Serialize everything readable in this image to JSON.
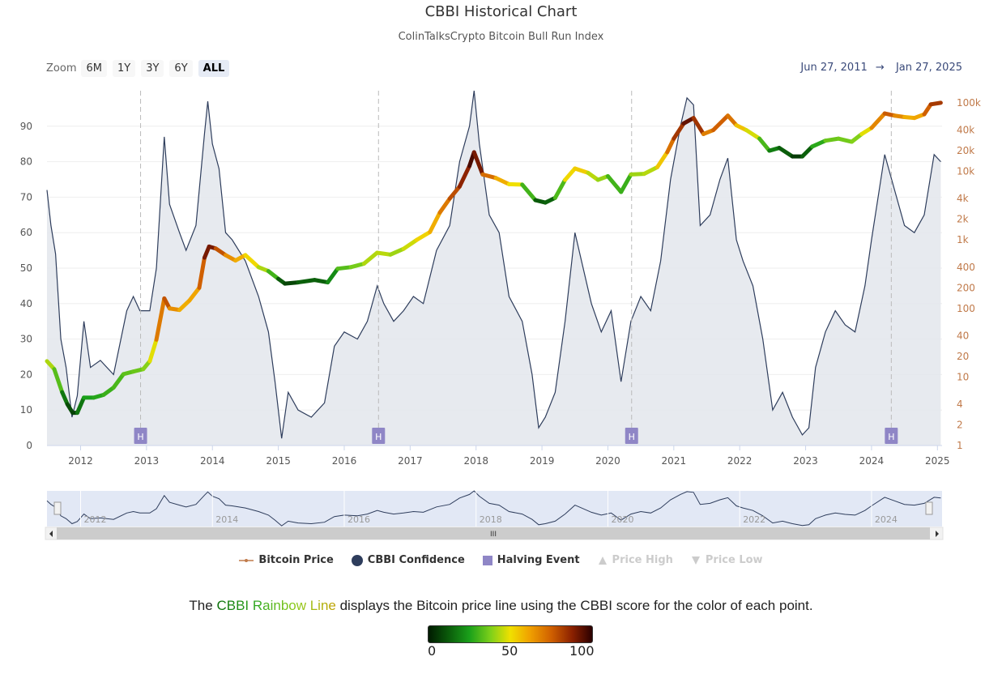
{
  "page": {
    "title": "CBBI Historical Chart",
    "subtitle": "ColinTalksCrypto Bitcoin Bull Run Index"
  },
  "zoom": {
    "label": "Zoom",
    "buttons": [
      "6M",
      "1Y",
      "3Y",
      "6Y",
      "ALL"
    ],
    "active": "ALL"
  },
  "range": {
    "from": "Jun 27, 2011",
    "arrow": "→",
    "to": "Jan 27, 2025"
  },
  "colors": {
    "confidence_line": "#2e3d5c",
    "area_fill": "#e3e6ec",
    "halving": "#8f86c6",
    "price_axis": "#c07a4a",
    "navigator_fill": "#cfd8ef"
  },
  "chart_data": {
    "type": "line",
    "title": "CBBI Historical Chart",
    "subtitle": "ColinTalksCrypto Bitcoin Bull Run Index",
    "x_range": [
      2011.49,
      2025.07
    ],
    "x_ticks": [
      "2012",
      "2013",
      "2014",
      "2015",
      "2016",
      "2017",
      "2018",
      "2019",
      "2020",
      "2021",
      "2022",
      "2023",
      "2024",
      "2025"
    ],
    "y_left": {
      "label": "CBBI Confidence",
      "range": [
        0,
        100
      ],
      "ticks": [
        "0",
        "10",
        "20",
        "30",
        "40",
        "50",
        "60",
        "70",
        "80",
        "90"
      ]
    },
    "y_right": {
      "label": "Bitcoin Price",
      "scale": "log",
      "range": [
        1,
        150000
      ],
      "ticks": [
        {
          "label": "1",
          "value": 1
        },
        {
          "label": "2",
          "value": 2
        },
        {
          "label": "4",
          "value": 4
        },
        {
          "label": "10",
          "value": 10
        },
        {
          "label": "20",
          "value": 20
        },
        {
          "label": "40",
          "value": 40
        },
        {
          "label": "100",
          "value": 100
        },
        {
          "label": "200",
          "value": 200
        },
        {
          "label": "400",
          "value": 400
        },
        {
          "label": "1k",
          "value": 1000
        },
        {
          "label": "2k",
          "value": 2000
        },
        {
          "label": "4k",
          "value": 4000
        },
        {
          "label": "10k",
          "value": 10000
        },
        {
          "label": "20k",
          "value": 20000
        },
        {
          "label": "40k",
          "value": 40000
        },
        {
          "label": "100k",
          "value": 100000
        }
      ]
    },
    "halvings": [
      {
        "label": "H",
        "x": 2012.91
      },
      {
        "label": "H",
        "x": 2016.52
      },
      {
        "label": "H",
        "x": 2020.36
      },
      {
        "label": "H",
        "x": 2024.3
      }
    ],
    "series": [
      {
        "name": "CBBI Confidence",
        "type": "area",
        "points": [
          [
            2011.49,
            72
          ],
          [
            2011.55,
            62
          ],
          [
            2011.62,
            54
          ],
          [
            2011.7,
            30
          ],
          [
            2011.78,
            22
          ],
          [
            2011.87,
            8
          ],
          [
            2011.95,
            14
          ],
          [
            2012.05,
            35
          ],
          [
            2012.15,
            22
          ],
          [
            2012.3,
            24
          ],
          [
            2012.5,
            20
          ],
          [
            2012.7,
            38
          ],
          [
            2012.8,
            42
          ],
          [
            2012.9,
            38
          ],
          [
            2013.05,
            38
          ],
          [
            2013.15,
            50
          ],
          [
            2013.27,
            87
          ],
          [
            2013.35,
            68
          ],
          [
            2013.5,
            60
          ],
          [
            2013.6,
            55
          ],
          [
            2013.75,
            62
          ],
          [
            2013.88,
            88
          ],
          [
            2013.93,
            97
          ],
          [
            2014.0,
            85
          ],
          [
            2014.1,
            78
          ],
          [
            2014.2,
            60
          ],
          [
            2014.3,
            58
          ],
          [
            2014.5,
            52
          ],
          [
            2014.7,
            42
          ],
          [
            2014.85,
            32
          ],
          [
            2014.95,
            18
          ],
          [
            2015.05,
            2
          ],
          [
            2015.15,
            15
          ],
          [
            2015.3,
            10
          ],
          [
            2015.5,
            8
          ],
          [
            2015.7,
            12
          ],
          [
            2015.85,
            28
          ],
          [
            2016.0,
            32
          ],
          [
            2016.2,
            30
          ],
          [
            2016.35,
            35
          ],
          [
            2016.5,
            45
          ],
          [
            2016.6,
            40
          ],
          [
            2016.75,
            35
          ],
          [
            2016.9,
            38
          ],
          [
            2017.05,
            42
          ],
          [
            2017.2,
            40
          ],
          [
            2017.4,
            55
          ],
          [
            2017.6,
            62
          ],
          [
            2017.75,
            80
          ],
          [
            2017.9,
            90
          ],
          [
            2017.97,
            100
          ],
          [
            2018.05,
            85
          ],
          [
            2018.2,
            65
          ],
          [
            2018.35,
            60
          ],
          [
            2018.5,
            42
          ],
          [
            2018.7,
            35
          ],
          [
            2018.85,
            20
          ],
          [
            2018.95,
            5
          ],
          [
            2019.05,
            8
          ],
          [
            2019.2,
            15
          ],
          [
            2019.35,
            35
          ],
          [
            2019.5,
            60
          ],
          [
            2019.6,
            52
          ],
          [
            2019.75,
            40
          ],
          [
            2019.9,
            32
          ],
          [
            2020.05,
            38
          ],
          [
            2020.2,
            18
          ],
          [
            2020.35,
            35
          ],
          [
            2020.5,
            42
          ],
          [
            2020.65,
            38
          ],
          [
            2020.8,
            52
          ],
          [
            2020.95,
            75
          ],
          [
            2021.1,
            90
          ],
          [
            2021.2,
            98
          ],
          [
            2021.3,
            96
          ],
          [
            2021.4,
            62
          ],
          [
            2021.55,
            65
          ],
          [
            2021.7,
            75
          ],
          [
            2021.82,
            81
          ],
          [
            2021.95,
            58
          ],
          [
            2022.05,
            52
          ],
          [
            2022.2,
            45
          ],
          [
            2022.35,
            30
          ],
          [
            2022.5,
            10
          ],
          [
            2022.65,
            15
          ],
          [
            2022.8,
            8
          ],
          [
            2022.95,
            3
          ],
          [
            2023.05,
            5
          ],
          [
            2023.15,
            22
          ],
          [
            2023.3,
            32
          ],
          [
            2023.45,
            38
          ],
          [
            2023.6,
            34
          ],
          [
            2023.75,
            32
          ],
          [
            2023.9,
            45
          ],
          [
            2024.0,
            58
          ],
          [
            2024.2,
            82
          ],
          [
            2024.35,
            72
          ],
          [
            2024.5,
            62
          ],
          [
            2024.65,
            60
          ],
          [
            2024.8,
            65
          ],
          [
            2024.95,
            82
          ],
          [
            2025.05,
            80
          ]
        ]
      },
      {
        "name": "Bitcoin Price",
        "type": "line",
        "color_by": "CBBI score",
        "points": [
          [
            2011.49,
            17,
            40
          ],
          [
            2011.6,
            13,
            45
          ],
          [
            2011.72,
            6,
            20
          ],
          [
            2011.8,
            4,
            15
          ],
          [
            2011.88,
            3,
            5
          ],
          [
            2011.95,
            3,
            10
          ],
          [
            2012.05,
            5,
            25
          ],
          [
            2012.2,
            5,
            25
          ],
          [
            2012.35,
            5.5,
            28
          ],
          [
            2012.5,
            7,
            30
          ],
          [
            2012.65,
            11,
            32
          ],
          [
            2012.8,
            12,
            35
          ],
          [
            2012.95,
            13,
            35
          ],
          [
            2013.05,
            17,
            42
          ],
          [
            2013.15,
            35,
            55
          ],
          [
            2013.27,
            140,
            85
          ],
          [
            2013.35,
            100,
            70
          ],
          [
            2013.5,
            95,
            62
          ],
          [
            2013.65,
            130,
            58
          ],
          [
            2013.8,
            200,
            65
          ],
          [
            2013.88,
            550,
            85
          ],
          [
            2013.95,
            800,
            95
          ],
          [
            2014.05,
            750,
            85
          ],
          [
            2014.2,
            600,
            70
          ],
          [
            2014.35,
            500,
            62
          ],
          [
            2014.5,
            600,
            58
          ],
          [
            2014.7,
            400,
            45
          ],
          [
            2014.85,
            350,
            40
          ],
          [
            2015.0,
            270,
            20
          ],
          [
            2015.1,
            230,
            5
          ],
          [
            2015.3,
            240,
            12
          ],
          [
            2015.55,
            260,
            15
          ],
          [
            2015.75,
            240,
            12
          ],
          [
            2015.9,
            380,
            30
          ],
          [
            2016.1,
            400,
            35
          ],
          [
            2016.3,
            450,
            38
          ],
          [
            2016.5,
            650,
            48
          ],
          [
            2016.7,
            610,
            40
          ],
          [
            2016.9,
            740,
            42
          ],
          [
            2017.1,
            1000,
            50
          ],
          [
            2017.3,
            1300,
            55
          ],
          [
            2017.45,
            2500,
            65
          ],
          [
            2017.6,
            4000,
            75
          ],
          [
            2017.75,
            6000,
            82
          ],
          [
            2017.9,
            12000,
            92
          ],
          [
            2017.97,
            19000,
            100
          ],
          [
            2018.1,
            9000,
            80
          ],
          [
            2018.3,
            8000,
            65
          ],
          [
            2018.5,
            6500,
            55
          ],
          [
            2018.7,
            6400,
            45
          ],
          [
            2018.9,
            3800,
            15
          ],
          [
            2019.05,
            3500,
            10
          ],
          [
            2019.2,
            4100,
            18
          ],
          [
            2019.35,
            7500,
            45
          ],
          [
            2019.5,
            11000,
            58
          ],
          [
            2019.7,
            9500,
            50
          ],
          [
            2019.85,
            7500,
            38
          ],
          [
            2020.0,
            8500,
            42
          ],
          [
            2020.2,
            5000,
            18
          ],
          [
            2020.35,
            9000,
            40
          ],
          [
            2020.55,
            9200,
            42
          ],
          [
            2020.75,
            11500,
            45
          ],
          [
            2020.9,
            19000,
            65
          ],
          [
            2021.0,
            30000,
            78
          ],
          [
            2021.15,
            50000,
            88
          ],
          [
            2021.3,
            60000,
            97
          ],
          [
            2021.45,
            35000,
            70
          ],
          [
            2021.6,
            40000,
            68
          ],
          [
            2021.82,
            65000,
            82
          ],
          [
            2021.95,
            47000,
            60
          ],
          [
            2022.1,
            40000,
            52
          ],
          [
            2022.3,
            30000,
            42
          ],
          [
            2022.45,
            20000,
            20
          ],
          [
            2022.6,
            22000,
            18
          ],
          [
            2022.8,
            16500,
            8
          ],
          [
            2022.95,
            16500,
            5
          ],
          [
            2023.1,
            23000,
            22
          ],
          [
            2023.3,
            28000,
            32
          ],
          [
            2023.5,
            30000,
            38
          ],
          [
            2023.7,
            27000,
            34
          ],
          [
            2023.85,
            35000,
            42
          ],
          [
            2024.0,
            43000,
            55
          ],
          [
            2024.2,
            70000,
            80
          ],
          [
            2024.35,
            65000,
            72
          ],
          [
            2024.5,
            62000,
            62
          ],
          [
            2024.65,
            60000,
            58
          ],
          [
            2024.8,
            68000,
            65
          ],
          [
            2024.9,
            95000,
            85
          ],
          [
            2025.05,
            100000,
            80
          ]
        ]
      }
    ],
    "legend": [
      {
        "name": "Bitcoin Price",
        "symbol": "line",
        "enabled": true
      },
      {
        "name": "CBBI Confidence",
        "symbol": "circle",
        "enabled": true
      },
      {
        "name": "Halving Event",
        "symbol": "square",
        "enabled": true
      },
      {
        "name": "Price High",
        "symbol": "triangle-up",
        "enabled": false
      },
      {
        "name": "Price Low",
        "symbol": "triangle-down",
        "enabled": false
      }
    ],
    "navigator": {
      "x_ticks": [
        "2012",
        "2014",
        "2016",
        "2018",
        "2020",
        "2022",
        "2024"
      ],
      "scrollbar_grip": "III"
    },
    "colorbar": {
      "min": 0,
      "max": 100,
      "ticks": [
        "0",
        "50",
        "100"
      ],
      "stops": [
        "#001a00",
        "#0a5a0a",
        "#1aa01a",
        "#7ed01a",
        "#f0e000",
        "#f0a000",
        "#d06000",
        "#8a2000",
        "#2a0000"
      ]
    }
  },
  "caption": {
    "before": "The ",
    "highlight": "CBBI Rainbow Line",
    "after": " displays the Bitcoin price line using the CBBI score for the color of each point."
  }
}
